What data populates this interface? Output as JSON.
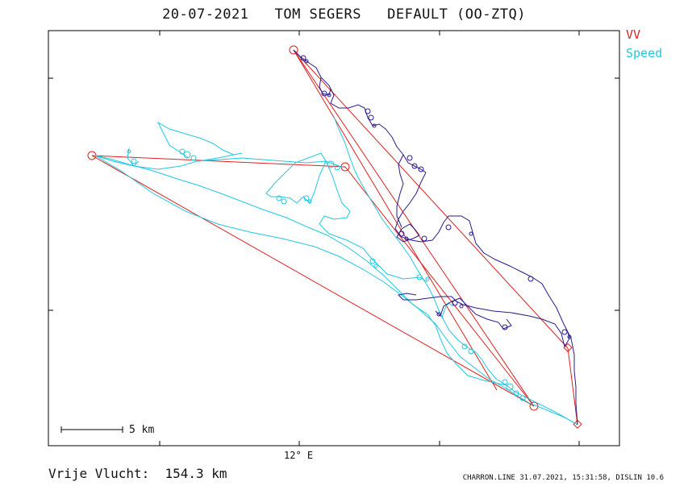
{
  "header": {
    "title": "20-07-2021   TOM SEGERS   DEFAULT (OO-ZTQ)"
  },
  "legend": [
    {
      "label": "VV",
      "color": "#e02020"
    },
    {
      "label": "Speed",
      "color": "#22c8e0"
    }
  ],
  "map": {
    "longitude_label": "12° E",
    "scale_label": "5 km",
    "colors": {
      "task": "#e02020",
      "track_a": "#22c8e0",
      "track_b": "#2a1a8a",
      "frame": "#000000"
    }
  },
  "footer": {
    "distance": "Vrije Vlucht:  154.3 km",
    "credit": "CHARRON.LINE 31.07.2021, 15:31:58, DISLIN 10.6"
  }
}
